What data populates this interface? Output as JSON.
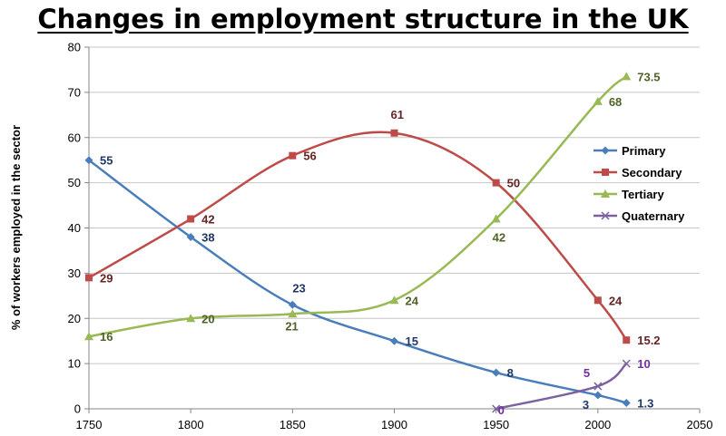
{
  "chart_data": {
    "type": "line",
    "title": "Changes in employment structure in the UK",
    "xlabel": "",
    "ylabel": "% of workers employed in the sector",
    "xlim": [
      1750,
      2050
    ],
    "ylim": [
      0,
      80
    ],
    "x_ticks": [
      "1750",
      "1800",
      "1850",
      "1900",
      "1950",
      "2000",
      "2050"
    ],
    "y_ticks": [
      "0",
      "10",
      "20",
      "30",
      "40",
      "50",
      "60",
      "70",
      "80"
    ],
    "grid": true,
    "legend_position": "right",
    "series": [
      {
        "name": "Primary",
        "color": "#4A7EBB",
        "marker": "diamond",
        "x": [
          1750,
          1800,
          1850,
          1900,
          1950,
          2000,
          2014
        ],
        "y": [
          55,
          38,
          23,
          15,
          8,
          3,
          1.3
        ],
        "labels": [
          "55",
          "38",
          "23",
          "15",
          "8",
          "3",
          "1.3"
        ]
      },
      {
        "name": "Secondary",
        "color": "#BE4B48",
        "marker": "square",
        "x": [
          1750,
          1800,
          1850,
          1900,
          1950,
          2000,
          2014
        ],
        "y": [
          29,
          42,
          56,
          61,
          50,
          24,
          15.2
        ],
        "labels": [
          "29",
          "42",
          "56",
          "61",
          "50",
          "24",
          "15.2"
        ]
      },
      {
        "name": "Tertiary",
        "color": "#98B954",
        "marker": "triangle",
        "x": [
          1750,
          1800,
          1850,
          1900,
          1950,
          2000,
          2014
        ],
        "y": [
          16,
          20,
          21,
          24,
          42,
          68,
          73.5
        ],
        "labels": [
          "16",
          "20",
          "21",
          "24",
          "42",
          "68",
          "73.5"
        ]
      },
      {
        "name": "Quaternary",
        "color": "#7D60A0",
        "marker": "x",
        "x": [
          1950,
          2000,
          2014
        ],
        "y": [
          0,
          5,
          10
        ],
        "labels": [
          "0",
          "5",
          "10"
        ]
      }
    ]
  }
}
